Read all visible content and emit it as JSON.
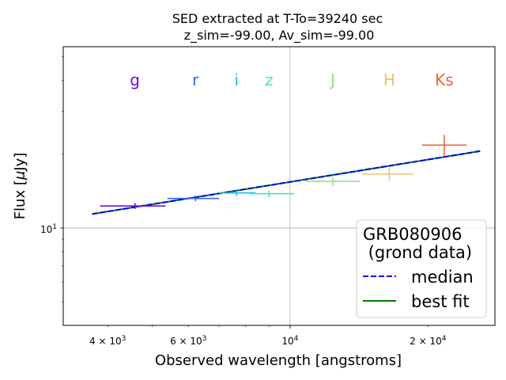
{
  "chart_data": {
    "type": "scatter",
    "title_line1": "SED extracted at T-To=39240 sec",
    "title_line2": "z_sim=-99.00, Av_sim=-99.00",
    "xlabel": "Observed wavelength [angstroms]",
    "ylabel_prefix": "Flux [",
    "ylabel_mu": "μ",
    "ylabel_suffix": "Jy]",
    "xscale": "log",
    "yscale": "log",
    "xlim": [
      3200,
      28000
    ],
    "ylim": [
      4.0,
      55
    ],
    "grid": "x=10000, y=10",
    "x_ticks": [
      {
        "value": 4000,
        "base": "4 × 10",
        "exp": "3"
      },
      {
        "value": 6000,
        "base": "6 × 10",
        "exp": "3"
      },
      {
        "value": 10000,
        "base": "10",
        "exp": "4"
      },
      {
        "value": 20000,
        "base": "2 × 10",
        "exp": "4"
      }
    ],
    "y_ticks": [
      {
        "value": 10,
        "base": "10",
        "exp": "1"
      }
    ],
    "bands": [
      {
        "name": "g",
        "wavelength": 4587,
        "flux": 12.3,
        "wl_min": 3850,
        "wl_max": 5350,
        "flux_err": 0.35,
        "color": "#7010d8"
      },
      {
        "name": "r",
        "wavelength": 6220,
        "flux": 13.2,
        "wl_min": 5400,
        "wl_max": 7000,
        "flux_err": 0.35,
        "color": "#2f6ae8"
      },
      {
        "name": "i",
        "wavelength": 7641,
        "flux": 13.9,
        "wl_min": 7000,
        "wl_max": 8400,
        "flux_err": 0.4,
        "color": "#19c0e0"
      },
      {
        "name": "z",
        "wavelength": 8999,
        "flux": 13.8,
        "wl_min": 8200,
        "wl_max": 10200,
        "flux_err": 0.4,
        "color": "#3ee8c4"
      },
      {
        "name": "J",
        "wavelength": 12399,
        "flux": 15.5,
        "wl_min": 10800,
        "wl_max": 14200,
        "flux_err": 0.7,
        "color": "#90e47e"
      },
      {
        "name": "H",
        "wavelength": 16468,
        "flux": 16.6,
        "wl_min": 14400,
        "wl_max": 18600,
        "flux_err": 1.0,
        "color": "#f0c070"
      },
      {
        "name": "Ks",
        "wavelength": 21706,
        "flux": 21.8,
        "wl_min": 19400,
        "wl_max": 24300,
        "flux_err": 2.2,
        "color": "#f2663e"
      }
    ],
    "series": [
      {
        "name": "median",
        "style": "dashed",
        "color": "#0000ff",
        "x": [
          3700,
          26000
        ],
        "y": [
          11.4,
          20.6
        ]
      },
      {
        "name": "best fit",
        "style": "solid",
        "color": "#008000",
        "x": [
          3700,
          26000
        ],
        "y": [
          11.4,
          20.6
        ]
      }
    ],
    "legend": {
      "title_line1": "GRB080906",
      "title_line2": " (grond data)",
      "placement": "lower-right"
    }
  }
}
